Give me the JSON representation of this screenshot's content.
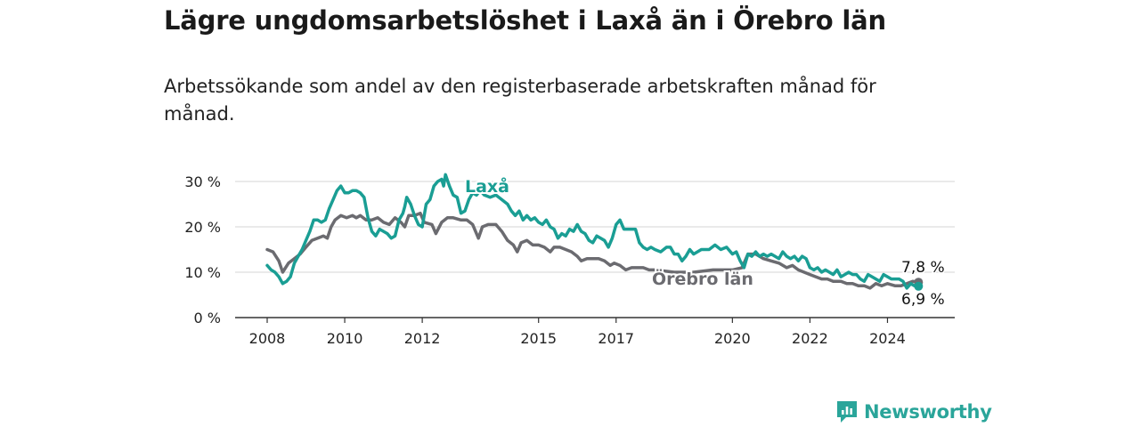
{
  "header": {
    "title": "Lägre ungdomsarbetslöshet i Laxå än i Örebro län",
    "subtitle": "Arbetssökande som andel av den registerbaserade arbetskraften månad för månad."
  },
  "brand": {
    "name": "Newsworthy",
    "icon": "chart-bubble-icon",
    "color": "#2aa59a"
  },
  "chart_data": {
    "type": "line",
    "title": "Lägre ungdomsarbetslöshet i Laxå än i Örebro län",
    "ylim": [
      0,
      30
    ],
    "yticks": [
      0,
      10,
      20,
      30
    ],
    "ytick_labels": [
      "0 %",
      "10 %",
      "20 %",
      "30 %"
    ],
    "xlim": [
      2008.0,
      2025.0
    ],
    "xticks": [
      2008,
      2010,
      2012,
      2015,
      2017,
      2020,
      2022,
      2024
    ],
    "xtick_labels": [
      "2008",
      "2010",
      "2012",
      "2015",
      "2017",
      "2020",
      "2022",
      "2024"
    ],
    "grid": true,
    "series": [
      {
        "name": "Örebro län",
        "color": "#6b6b70",
        "end_label": "7,8 %",
        "points": [
          [
            2008.0,
            15.0
          ],
          [
            2008.15,
            14.5
          ],
          [
            2008.3,
            12.5
          ],
          [
            2008.4,
            10.0
          ],
          [
            2008.55,
            12.0
          ],
          [
            2008.7,
            13.0
          ],
          [
            2008.85,
            14.0
          ],
          [
            2009.0,
            15.5
          ],
          [
            2009.15,
            17.0
          ],
          [
            2009.3,
            17.5
          ],
          [
            2009.45,
            18.0
          ],
          [
            2009.55,
            17.5
          ],
          [
            2009.65,
            20.0
          ],
          [
            2009.75,
            21.5
          ],
          [
            2009.9,
            22.5
          ],
          [
            2010.05,
            22.0
          ],
          [
            2010.2,
            22.5
          ],
          [
            2010.3,
            22.0
          ],
          [
            2010.4,
            22.5
          ],
          [
            2010.55,
            21.5
          ],
          [
            2010.7,
            21.5
          ],
          [
            2010.85,
            22.0
          ],
          [
            2011.0,
            21.0
          ],
          [
            2011.15,
            20.5
          ],
          [
            2011.3,
            22.0
          ],
          [
            2011.45,
            21.0
          ],
          [
            2011.55,
            20.0
          ],
          [
            2011.65,
            22.5
          ],
          [
            2011.8,
            22.5
          ],
          [
            2011.95,
            23.0
          ],
          [
            2012.05,
            21.0
          ],
          [
            2012.25,
            20.5
          ],
          [
            2012.35,
            18.5
          ],
          [
            2012.5,
            21.0
          ],
          [
            2012.65,
            22.0
          ],
          [
            2012.8,
            22.0
          ],
          [
            2013.0,
            21.5
          ],
          [
            2013.15,
            21.5
          ],
          [
            2013.3,
            20.5
          ],
          [
            2013.45,
            17.5
          ],
          [
            2013.55,
            20.0
          ],
          [
            2013.7,
            20.5
          ],
          [
            2013.9,
            20.5
          ],
          [
            2014.05,
            19.0
          ],
          [
            2014.2,
            17.0
          ],
          [
            2014.35,
            16.0
          ],
          [
            2014.45,
            14.5
          ],
          [
            2014.55,
            16.5
          ],
          [
            2014.7,
            17.0
          ],
          [
            2014.85,
            16.0
          ],
          [
            2015.0,
            16.0
          ],
          [
            2015.15,
            15.5
          ],
          [
            2015.3,
            14.5
          ],
          [
            2015.4,
            15.5
          ],
          [
            2015.55,
            15.5
          ],
          [
            2015.7,
            15.0
          ],
          [
            2015.85,
            14.5
          ],
          [
            2016.0,
            13.5
          ],
          [
            2016.1,
            12.5
          ],
          [
            2016.25,
            13.0
          ],
          [
            2016.4,
            13.0
          ],
          [
            2016.55,
            13.0
          ],
          [
            2016.7,
            12.5
          ],
          [
            2016.85,
            11.5
          ],
          [
            2016.95,
            12.0
          ],
          [
            2017.1,
            11.5
          ],
          [
            2017.25,
            10.5
          ],
          [
            2017.4,
            11.0
          ],
          [
            2017.55,
            11.0
          ],
          [
            2017.7,
            11.0
          ],
          [
            2017.85,
            10.5
          ],
          [
            2018.0,
            10.5
          ],
          [
            2018.5,
            10.0
          ],
          [
            2019.0,
            10.0
          ],
          [
            2019.5,
            10.5
          ],
          [
            2020.0,
            10.5
          ],
          [
            2020.25,
            11.0
          ],
          [
            2020.4,
            14.0
          ],
          [
            2020.6,
            14.0
          ],
          [
            2020.8,
            13.0
          ],
          [
            2021.0,
            12.5
          ],
          [
            2021.2,
            12.0
          ],
          [
            2021.4,
            11.0
          ],
          [
            2021.55,
            11.5
          ],
          [
            2021.7,
            10.5
          ],
          [
            2021.85,
            10.0
          ],
          [
            2022.0,
            9.5
          ],
          [
            2022.15,
            9.0
          ],
          [
            2022.3,
            8.5
          ],
          [
            2022.45,
            8.5
          ],
          [
            2022.6,
            8.0
          ],
          [
            2022.8,
            8.0
          ],
          [
            2022.95,
            7.5
          ],
          [
            2023.1,
            7.5
          ],
          [
            2023.25,
            7.0
          ],
          [
            2023.4,
            7.0
          ],
          [
            2023.55,
            6.5
          ],
          [
            2023.7,
            7.5
          ],
          [
            2023.85,
            7.0
          ],
          [
            2024.0,
            7.5
          ],
          [
            2024.2,
            7.0
          ],
          [
            2024.35,
            7.0
          ],
          [
            2024.5,
            7.5
          ],
          [
            2024.65,
            8.0
          ],
          [
            2024.8,
            7.8
          ]
        ]
      },
      {
        "name": "Laxå",
        "color": "#1a9e94",
        "end_label": "6,9 %",
        "points": [
          [
            2008.0,
            11.5
          ],
          [
            2008.1,
            10.5
          ],
          [
            2008.2,
            10.0
          ],
          [
            2008.3,
            9.0
          ],
          [
            2008.4,
            7.5
          ],
          [
            2008.5,
            8.0
          ],
          [
            2008.6,
            9.0
          ],
          [
            2008.7,
            12.0
          ],
          [
            2008.8,
            13.5
          ],
          [
            2008.9,
            15.0
          ],
          [
            2009.0,
            17.0
          ],
          [
            2009.1,
            19.0
          ],
          [
            2009.2,
            21.5
          ],
          [
            2009.3,
            21.5
          ],
          [
            2009.4,
            21.0
          ],
          [
            2009.5,
            21.5
          ],
          [
            2009.6,
            24.0
          ],
          [
            2009.7,
            26.0
          ],
          [
            2009.8,
            28.0
          ],
          [
            2009.9,
            29.0
          ],
          [
            2010.0,
            27.5
          ],
          [
            2010.1,
            27.5
          ],
          [
            2010.2,
            28.0
          ],
          [
            2010.3,
            28.0
          ],
          [
            2010.4,
            27.5
          ],
          [
            2010.5,
            26.5
          ],
          [
            2010.6,
            22.0
          ],
          [
            2010.7,
            19.0
          ],
          [
            2010.8,
            18.0
          ],
          [
            2010.9,
            19.5
          ],
          [
            2011.0,
            19.0
          ],
          [
            2011.1,
            18.5
          ],
          [
            2011.2,
            17.5
          ],
          [
            2011.3,
            18.0
          ],
          [
            2011.4,
            21.5
          ],
          [
            2011.5,
            23.0
          ],
          [
            2011.55,
            24.5
          ],
          [
            2011.6,
            26.5
          ],
          [
            2011.7,
            25.0
          ],
          [
            2011.8,
            22.5
          ],
          [
            2011.9,
            20.5
          ],
          [
            2012.0,
            20.0
          ],
          [
            2012.1,
            25.0
          ],
          [
            2012.2,
            26.0
          ],
          [
            2012.3,
            29.0
          ],
          [
            2012.4,
            30.0
          ],
          [
            2012.5,
            30.5
          ],
          [
            2012.55,
            29.0
          ],
          [
            2012.6,
            31.5
          ],
          [
            2012.7,
            29.0
          ],
          [
            2012.8,
            27.0
          ],
          [
            2012.9,
            26.5
          ],
          [
            2013.0,
            23.0
          ],
          [
            2013.1,
            23.5
          ],
          [
            2013.2,
            26.0
          ],
          [
            2013.3,
            27.5
          ],
          [
            2013.4,
            27.0
          ],
          [
            2013.5,
            28.0
          ],
          [
            2013.6,
            27.0
          ],
          [
            2013.75,
            26.5
          ],
          [
            2013.9,
            27.0
          ],
          [
            2014.05,
            26.0
          ],
          [
            2014.2,
            25.0
          ],
          [
            2014.3,
            23.5
          ],
          [
            2014.4,
            22.5
          ],
          [
            2014.5,
            23.5
          ],
          [
            2014.6,
            21.5
          ],
          [
            2014.7,
            22.5
          ],
          [
            2014.8,
            21.5
          ],
          [
            2014.9,
            22.0
          ],
          [
            2015.0,
            21.0
          ],
          [
            2015.1,
            20.5
          ],
          [
            2015.2,
            21.5
          ],
          [
            2015.3,
            20.0
          ],
          [
            2015.4,
            19.5
          ],
          [
            2015.5,
            17.5
          ],
          [
            2015.6,
            18.5
          ],
          [
            2015.7,
            18.0
          ],
          [
            2015.8,
            19.5
          ],
          [
            2015.9,
            19.0
          ],
          [
            2016.0,
            20.5
          ],
          [
            2016.1,
            19.0
          ],
          [
            2016.2,
            18.5
          ],
          [
            2016.3,
            17.0
          ],
          [
            2016.4,
            16.5
          ],
          [
            2016.5,
            18.0
          ],
          [
            2016.6,
            17.5
          ],
          [
            2016.7,
            17.0
          ],
          [
            2016.8,
            15.5
          ],
          [
            2016.9,
            17.5
          ],
          [
            2017.0,
            20.5
          ],
          [
            2017.1,
            21.5
          ],
          [
            2017.2,
            19.5
          ],
          [
            2017.3,
            19.5
          ],
          [
            2017.4,
            19.5
          ],
          [
            2017.5,
            19.5
          ],
          [
            2017.6,
            16.5
          ],
          [
            2017.7,
            15.5
          ],
          [
            2017.8,
            15.0
          ],
          [
            2017.9,
            15.5
          ],
          [
            2018.0,
            15.0
          ],
          [
            2018.15,
            14.5
          ],
          [
            2018.3,
            15.5
          ],
          [
            2018.4,
            15.5
          ],
          [
            2018.5,
            14.0
          ],
          [
            2018.6,
            14.0
          ],
          [
            2018.7,
            12.5
          ],
          [
            2018.8,
            13.5
          ],
          [
            2018.9,
            15.0
          ],
          [
            2019.0,
            14.0
          ],
          [
            2019.2,
            15.0
          ],
          [
            2019.4,
            15.0
          ],
          [
            2019.55,
            16.0
          ],
          [
            2019.7,
            15.0
          ],
          [
            2019.85,
            15.5
          ],
          [
            2020.0,
            14.0
          ],
          [
            2020.1,
            14.5
          ],
          [
            2020.2,
            12.5
          ],
          [
            2020.3,
            11.0
          ],
          [
            2020.4,
            14.0
          ],
          [
            2020.5,
            13.5
          ],
          [
            2020.6,
            14.5
          ],
          [
            2020.7,
            13.5
          ],
          [
            2020.8,
            14.0
          ],
          [
            2020.9,
            13.5
          ],
          [
            2021.0,
            14.0
          ],
          [
            2021.1,
            13.5
          ],
          [
            2021.2,
            13.0
          ],
          [
            2021.3,
            14.5
          ],
          [
            2021.4,
            13.5
          ],
          [
            2021.5,
            13.0
          ],
          [
            2021.6,
            13.5
          ],
          [
            2021.7,
            12.5
          ],
          [
            2021.8,
            13.5
          ],
          [
            2021.9,
            13.0
          ],
          [
            2022.0,
            11.0
          ],
          [
            2022.1,
            10.5
          ],
          [
            2022.2,
            11.0
          ],
          [
            2022.3,
            10.0
          ],
          [
            2022.4,
            10.5
          ],
          [
            2022.5,
            10.0
          ],
          [
            2022.6,
            9.5
          ],
          [
            2022.7,
            10.5
          ],
          [
            2022.8,
            9.0
          ],
          [
            2022.9,
            9.5
          ],
          [
            2023.0,
            10.0
          ],
          [
            2023.1,
            9.5
          ],
          [
            2023.2,
            9.5
          ],
          [
            2023.3,
            8.5
          ],
          [
            2023.4,
            8.0
          ],
          [
            2023.5,
            9.5
          ],
          [
            2023.6,
            9.0
          ],
          [
            2023.7,
            8.5
          ],
          [
            2023.8,
            8.0
          ],
          [
            2023.9,
            9.5
          ],
          [
            2024.0,
            9.0
          ],
          [
            2024.1,
            8.5
          ],
          [
            2024.2,
            8.5
          ],
          [
            2024.3,
            8.5
          ],
          [
            2024.4,
            8.0
          ],
          [
            2024.5,
            6.5
          ],
          [
            2024.6,
            7.5
          ],
          [
            2024.7,
            7.0
          ],
          [
            2024.8,
            6.9
          ]
        ]
      }
    ]
  }
}
